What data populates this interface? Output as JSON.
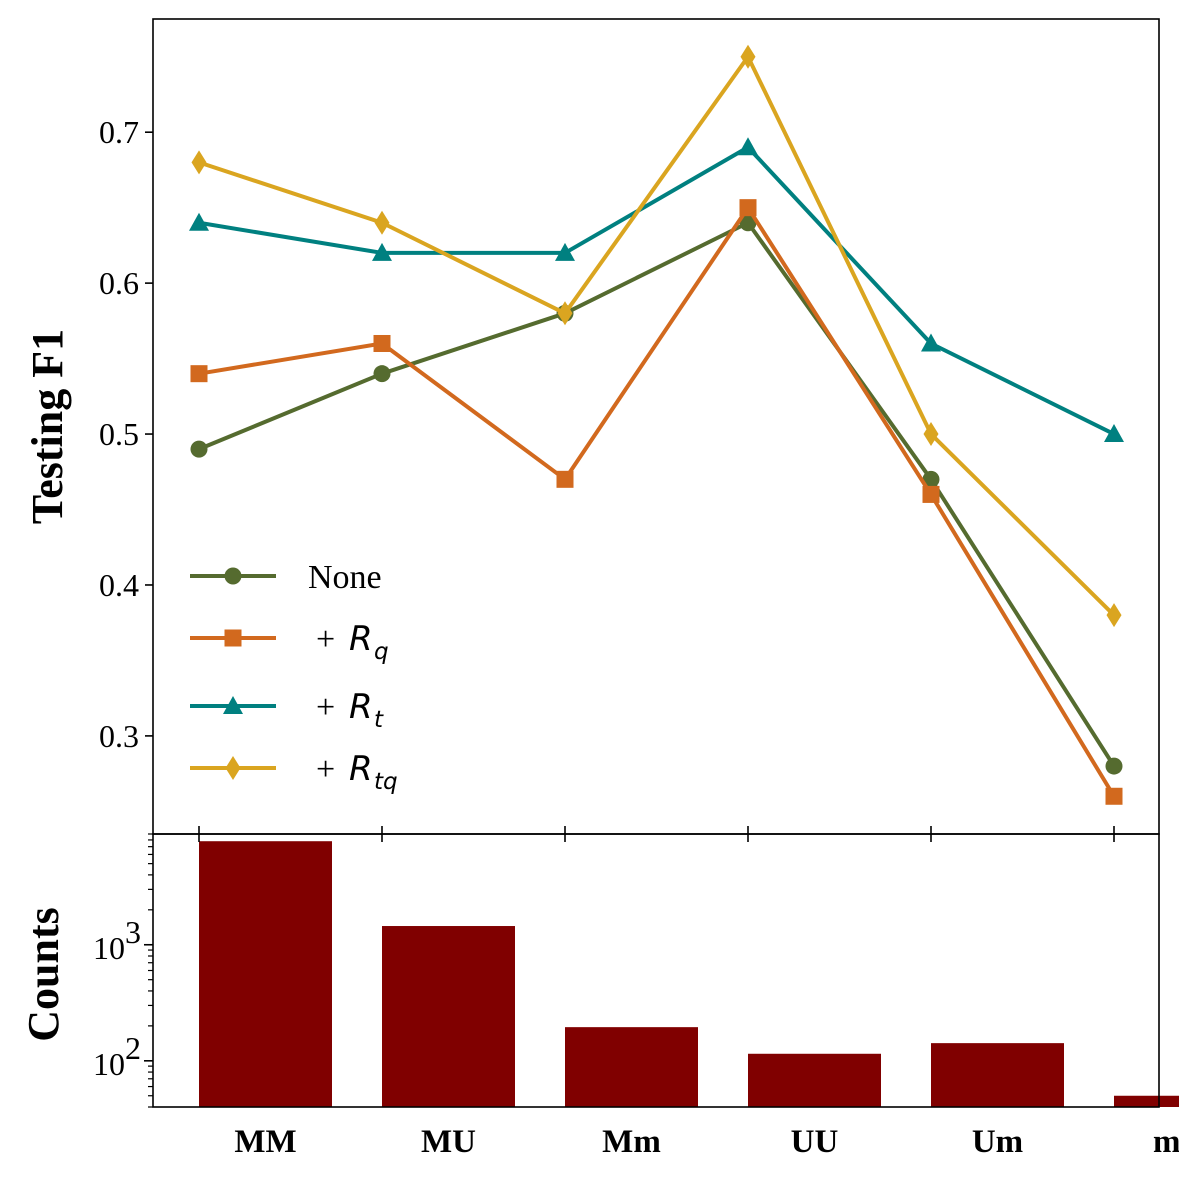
{
  "chart_data": [
    {
      "type": "line",
      "ylabel": "Testing F1",
      "xlabel": "",
      "categories": [
        "MM",
        "MU",
        "Mm",
        "UU",
        "Um",
        "mm"
      ],
      "ylim": [
        0.235,
        0.775
      ],
      "yticks": [
        0.3,
        0.4,
        0.5,
        0.6,
        0.7
      ],
      "ytick_labels": [
        "0.3",
        "0.4",
        "0.5",
        "0.6",
        "0.7"
      ],
      "legend_position": "lower-left",
      "grid": false,
      "series": [
        {
          "name": "None",
          "legend_prefix": "",
          "legend_main": "None",
          "legend_sub": "",
          "color": "#556b2f",
          "marker": "circle",
          "values": [
            0.49,
            0.54,
            0.58,
            0.64,
            0.47,
            0.28
          ]
        },
        {
          "name": "+R_q",
          "legend_prefix": "+",
          "legend_main": "R",
          "legend_sub": "q",
          "color": "#d2691e",
          "marker": "square",
          "values": [
            0.54,
            0.56,
            0.47,
            0.65,
            0.46,
            0.26
          ]
        },
        {
          "name": "+R_t",
          "legend_prefix": "+",
          "legend_main": "R",
          "legend_sub": "t",
          "color": "#008080",
          "marker": "triangle",
          "values": [
            0.64,
            0.62,
            0.62,
            0.69,
            0.56,
            0.5
          ]
        },
        {
          "name": "+R_tq",
          "legend_prefix": "+",
          "legend_main": "R",
          "legend_sub": "tq",
          "color": "#daa520",
          "marker": "diamond",
          "values": [
            0.68,
            0.64,
            0.58,
            0.75,
            0.5,
            0.38
          ]
        }
      ]
    },
    {
      "type": "bar",
      "ylabel": "Counts",
      "xlabel": "",
      "yscale": "log",
      "categories": [
        "MM",
        "MU",
        "Mm",
        "UU",
        "Um",
        "mm"
      ],
      "values": [
        7800,
        1450,
        195,
        115,
        142,
        50
      ],
      "color": "#800000",
      "ylim": [
        40,
        9000
      ],
      "yticks": [
        {
          "base": "10",
          "exp": "2"
        },
        {
          "base": "10",
          "exp": "3"
        }
      ]
    }
  ]
}
